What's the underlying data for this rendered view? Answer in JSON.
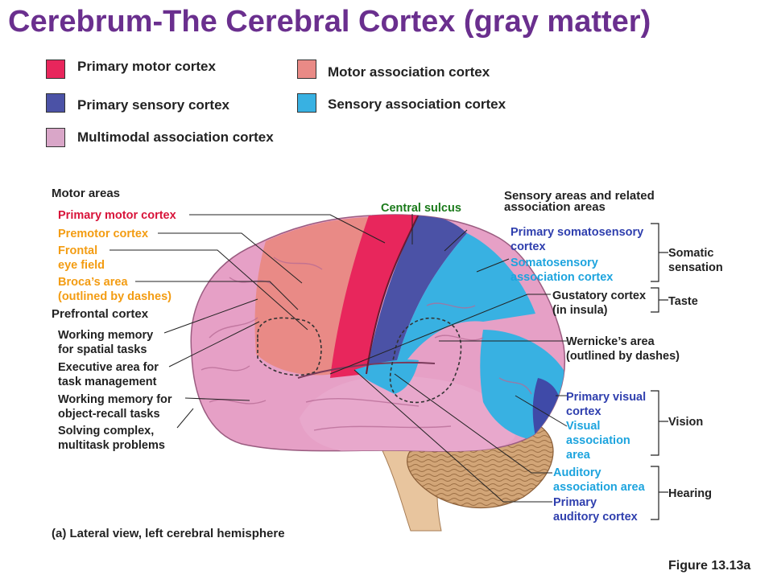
{
  "title": "Cerebrum-The Cerebral Cortex (gray matter)",
  "legend": [
    {
      "label": "Primary motor cortex",
      "color": "#e8265c"
    },
    {
      "label": "Primary sensory cortex",
      "color": "#4b52a6"
    },
    {
      "label": "Multimodal association cortex",
      "color": "#d9a6c8"
    },
    {
      "label": "Motor association cortex",
      "color": "#e98a86"
    },
    {
      "label": "Sensory association cortex",
      "color": "#38b1e2"
    }
  ],
  "motor_areas": {
    "heading": "Motor areas",
    "primary_motor": "Primary motor cortex",
    "premotor": "Premotor cortex",
    "frontal_eye_field": "Frontal\neye field",
    "brocas_area": "Broca’s area\n(outlined by dashes)"
  },
  "prefrontal": {
    "heading": "Prefrontal cortex",
    "working_memory_spatial": "Working memory\nfor spatial tasks",
    "executive_area": "Executive area for\ntask management",
    "working_memory_object": "Working memory for\nobject-recall tasks",
    "solving_problems": "Solving complex,\nmultitask problems"
  },
  "central_sulcus": "Central sulcus",
  "sensory": {
    "heading": "Sensory areas and related\nassociation areas",
    "primary_somatosensory": "Primary somatosensory\ncortex",
    "somatosensory_association": "Somatosensory\nassociation cortex",
    "gustatory": "Gustatory cortex\n(in insula)",
    "wernickes": "Wernicke’s area\n(outlined by dashes)",
    "primary_visual": "Primary visual\ncortex",
    "visual_association": "Visual\nassociation\narea",
    "auditory_association": "Auditory\nassociation area",
    "primary_auditory": "Primary\nauditory cortex"
  },
  "groups": {
    "somatic": "Somatic\nsensation",
    "taste": "Taste",
    "vision": "Vision",
    "hearing": "Hearing"
  },
  "caption": "(a) Lateral view, left cerebral hemisphere",
  "figure_label": "Figure 13.13a"
}
